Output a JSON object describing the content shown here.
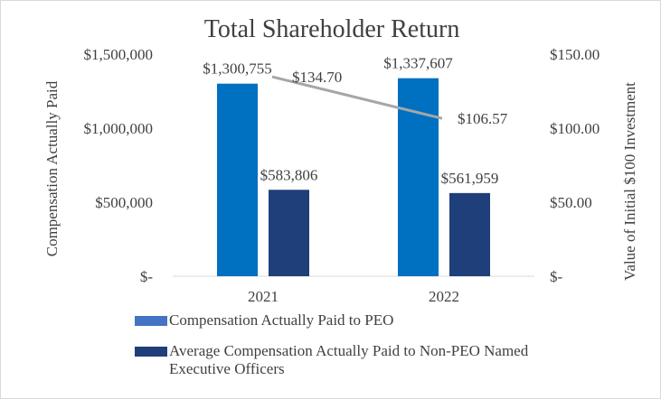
{
  "chart_data": {
    "type": "bar",
    "title": "Total Shareholder Return",
    "categories": [
      "2021",
      "2022"
    ],
    "ylabel": "Compensation Actually Paid",
    "y2label": "Value of Initial $100 Investment",
    "ylim": [
      0,
      1500000
    ],
    "y2lim": [
      0,
      150
    ],
    "yticks": [
      {
        "value": 0,
        "label": "$-"
      },
      {
        "value": 500000,
        "label": "$500,000"
      },
      {
        "value": 1000000,
        "label": "$1,000,000"
      },
      {
        "value": 1500000,
        "label": "$1,500,000"
      }
    ],
    "y2ticks": [
      {
        "value": 0,
        "label": "$-"
      },
      {
        "value": 50,
        "label": "$50.00"
      },
      {
        "value": 100,
        "label": "$100.00"
      },
      {
        "value": 150,
        "label": "$150.00"
      }
    ],
    "series": [
      {
        "name": "Compensation Actually Paid to PEO",
        "kind": "bar",
        "color": "#0070C0",
        "legend_color": "#4472C4",
        "values": [
          1300755,
          1337607
        ],
        "labels": [
          "$1,300,755",
          "$1,337,607"
        ]
      },
      {
        "name": "Average Compensation Actually Paid to Non-PEO Named Executive Officers",
        "kind": "bar",
        "color": "#1F3F7A",
        "legend_color": "#1F3F7A",
        "values": [
          583806,
          561959
        ],
        "labels": [
          "$583,806",
          "$561,959"
        ]
      },
      {
        "name": "Total Shareholder Return",
        "kind": "line",
        "axis": "secondary",
        "color": "#A6A6A6",
        "values": [
          134.7,
          106.57
        ],
        "labels": [
          "$134.70",
          "$106.57"
        ]
      }
    ],
    "legend": [
      {
        "label": "Compensation Actually Paid to PEO",
        "color": "#4472C4"
      },
      {
        "label": "Average Compensation Actually Paid to Non-PEO Named Executive Officers",
        "color": "#1F3F7A"
      }
    ]
  }
}
